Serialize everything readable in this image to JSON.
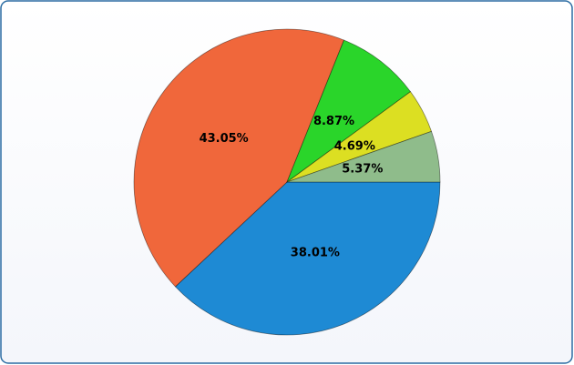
{
  "chart_data": {
    "type": "pie",
    "values": [
      38.01,
      43.05,
      8.87,
      4.69,
      5.37
    ],
    "value_labels": [
      "38.01%",
      "43.05%",
      "8.87%",
      "4.69%",
      "5.37%"
    ],
    "colors": [
      "#1e8ad4",
      "#f0673b",
      "#2ad52a",
      "#dcdf22",
      "#8fbc8b"
    ]
  }
}
